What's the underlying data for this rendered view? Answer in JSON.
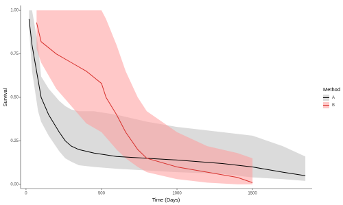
{
  "chart_data": {
    "type": "line",
    "x_label": "Time (Days)",
    "y_label": "Survival",
    "legend_title": "Method",
    "legend": "right",
    "xlim": [
      -36,
      1895
    ],
    "ylim": [
      -0.024,
      1.028
    ],
    "xticks": [
      0,
      500,
      1000,
      1500
    ],
    "yticks": [
      {
        "value": 0,
        "label": "0.00"
      },
      {
        "value": 0.25,
        "label": "0.25"
      },
      {
        "value": 0.5,
        "label": "0.50"
      },
      {
        "value": 0.75,
        "label": "0.75"
      },
      {
        "value": 1,
        "label": "1.00"
      }
    ],
    "series": [
      {
        "name": "A",
        "color": "#000000",
        "fill": "#bdbdbd",
        "x": [
          20,
          40,
          80,
          100,
          150,
          220,
          260,
          300,
          350,
          450,
          600,
          800,
          1000,
          1300,
          1500,
          1700,
          1850
        ],
        "values": [
          0.95,
          0.8,
          0.6,
          0.5,
          0.4,
          0.3,
          0.25,
          0.22,
          0.2,
          0.18,
          0.16,
          0.15,
          0.14,
          0.12,
          0.1,
          0.07,
          0.05
        ],
        "upper": [
          1.0,
          1.0,
          0.8,
          0.62,
          0.55,
          0.48,
          0.45,
          0.43,
          0.42,
          0.42,
          0.4,
          0.36,
          0.33,
          0.3,
          0.28,
          0.22,
          0.16
        ],
        "lower": [
          0.9,
          0.65,
          0.42,
          0.36,
          0.28,
          0.19,
          0.15,
          0.13,
          0.11,
          0.1,
          0.09,
          0.08,
          0.07,
          0.06,
          0.04,
          0.03,
          0.02
        ]
      },
      {
        "name": "B",
        "color": "#d7302c",
        "fill": "#ff9a9a",
        "x": [
          70,
          100,
          200,
          300,
          400,
          500,
          530,
          600,
          660,
          740,
          800,
          1000,
          1200,
          1400,
          1500
        ],
        "values": [
          0.93,
          0.82,
          0.75,
          0.7,
          0.65,
          0.58,
          0.5,
          0.4,
          0.3,
          0.2,
          0.15,
          0.1,
          0.07,
          0.04,
          0.01
        ],
        "upper": [
          1.0,
          1.0,
          1.0,
          1.0,
          1.0,
          1.0,
          0.95,
          0.8,
          0.65,
          0.5,
          0.42,
          0.3,
          0.22,
          0.18,
          0.15
        ],
        "lower": [
          0.78,
          0.7,
          0.55,
          0.45,
          0.35,
          0.3,
          0.27,
          0.2,
          0.15,
          0.1,
          0.07,
          0.03,
          0.01,
          0.0,
          0.0
        ]
      }
    ]
  }
}
